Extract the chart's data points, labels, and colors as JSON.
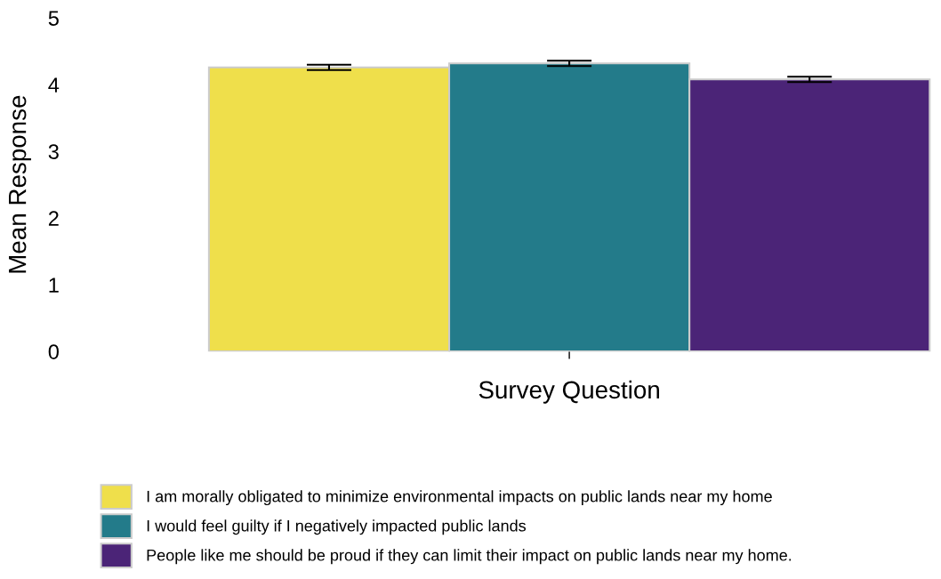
{
  "chart_data": {
    "type": "bar",
    "xlabel": "Survey Question",
    "ylabel": "Mean Response",
    "categories": [
      null
    ],
    "series": [
      {
        "name": "I am morally obligated to minimize environmental impacts on public lands near my home",
        "color": "#efdf4b",
        "values": [
          4.26
        ],
        "errors": [
          0.04
        ]
      },
      {
        "name": "I would feel guilty if I negatively impacted public lands",
        "color": "#237b8a",
        "values": [
          4.32
        ],
        "errors": [
          0.04
        ]
      },
      {
        "name": "People like me should be proud if they can limit their impact on public lands near my home.",
        "color": "#4b2477",
        "values": [
          4.08
        ],
        "errors": [
          0.04
        ]
      }
    ],
    "ylim": [
      0,
      5
    ],
    "yticks": [
      0,
      1,
      2,
      3,
      4,
      5
    ],
    "grid": false,
    "legend": "bottom"
  }
}
